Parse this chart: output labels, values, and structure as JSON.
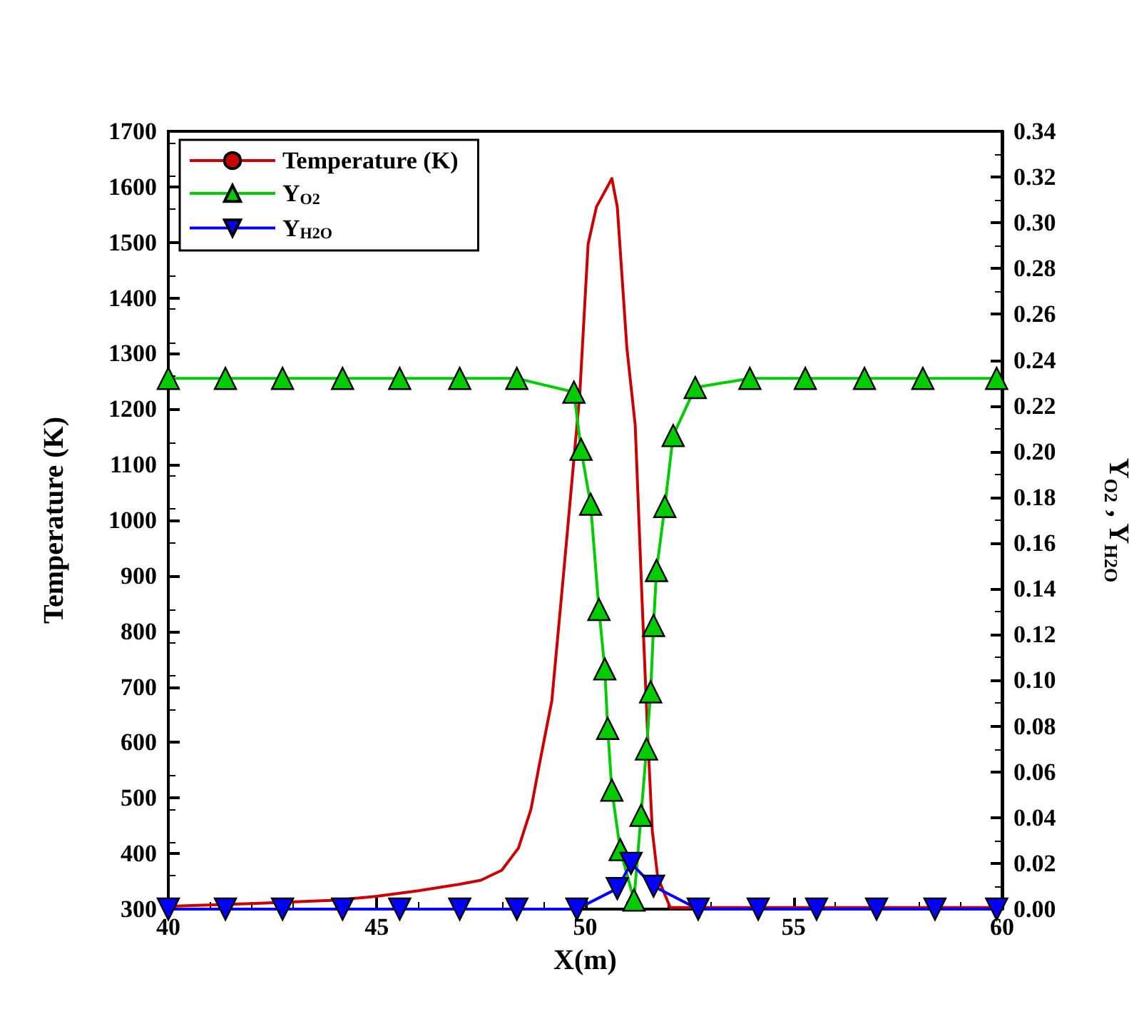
{
  "chart_data": {
    "type": "line",
    "xlabel": "X(m)",
    "ylabel": "Temperature (K)",
    "y2label": "Y$_{O2}$ , Y$_{H2O}$",
    "xlim": [
      40,
      60
    ],
    "xticks": [
      40,
      45,
      50,
      55,
      60
    ],
    "ylim": [
      300,
      1700
    ],
    "yticks": [
      300,
      400,
      500,
      600,
      700,
      800,
      900,
      1000,
      1100,
      1200,
      1300,
      1400,
      1500,
      1600,
      1700
    ],
    "y2lim": [
      0,
      0.34
    ],
    "y2ticks": [
      {
        "value": 0,
        "label": "0.00"
      },
      {
        "value": 0.02,
        "label": "0.02"
      },
      {
        "value": 0.04,
        "label": "0.04"
      },
      {
        "value": 0.06,
        "label": "0.06"
      },
      {
        "value": 0.08,
        "label": "0.08"
      },
      {
        "value": 0.1,
        "label": "0.10"
      },
      {
        "value": 0.12,
        "label": "0.12"
      },
      {
        "value": 0.14,
        "label": "0.14"
      },
      {
        "value": 0.16,
        "label": "0.16"
      },
      {
        "value": 0.18,
        "label": "0.18"
      },
      {
        "value": 0.2,
        "label": "0.20"
      },
      {
        "value": 0.22,
        "label": "0.22"
      },
      {
        "value": 0.24,
        "label": "0.24"
      },
      {
        "value": 0.26,
        "label": "0.26"
      },
      {
        "value": 0.28,
        "label": "0.28"
      },
      {
        "value": 0.3,
        "label": "0.30"
      },
      {
        "value": 0.32,
        "label": "0.32"
      },
      {
        "value": 0.34,
        "label": "0.34"
      }
    ],
    "legend": "top left",
    "grid": false,
    "series": [
      {
        "name": "Temperature (K)",
        "color": "#cc0000",
        "marker": "none",
        "x": [
          40,
          42,
          44,
          45,
          46,
          47,
          47.5,
          48,
          48.4,
          48.7,
          48.9,
          49.2,
          49.5,
          49.87,
          50.07,
          50.27,
          50.64,
          50.77,
          51.0,
          51.2,
          51.37,
          51.5,
          51.61,
          51.74,
          52.04,
          60
        ],
        "values": [
          305,
          310,
          316,
          323,
          333,
          345,
          352,
          370,
          410,
          480,
          560,
          675,
          919,
          1227,
          1497,
          1564,
          1615,
          1564,
          1310,
          1171,
          845,
          611,
          441,
          357,
          303,
          303
        ]
      },
      {
        "name": "Y$_{O2}$",
        "color": "#00cc00",
        "marker": "triangle",
        "axis": "y2",
        "x": [
          40,
          41.37,
          42.74,
          44.18,
          45.55,
          46.99,
          48.36,
          49.73,
          49.9,
          50.13,
          50.33,
          50.47,
          50.54,
          50.64,
          50.84,
          51.17,
          51.34,
          51.47,
          51.57,
          51.64,
          51.71,
          51.91,
          52.11,
          52.64,
          53.95,
          55.28,
          56.7,
          58.1,
          59.87
        ],
        "values": [
          0.232,
          0.232,
          0.232,
          0.232,
          0.232,
          0.232,
          0.232,
          0.226,
          0.201,
          0.177,
          0.131,
          0.105,
          0.079,
          0.052,
          0.026,
          0.004,
          0.041,
          0.07,
          0.095,
          0.124,
          0.148,
          0.176,
          0.207,
          0.228,
          0.232,
          0.232,
          0.232,
          0.232,
          0.232
        ]
      },
      {
        "name": "Y$_{H2O}$",
        "color": "#0000ff",
        "marker": "triangle_down",
        "axis": "y2",
        "x": [
          40,
          41.37,
          42.74,
          44.18,
          45.55,
          46.99,
          48.36,
          49.8,
          50.77,
          51.1,
          51.64,
          52.71,
          54.15,
          55.55,
          56.99,
          58.39,
          59.87
        ],
        "values": [
          0,
          0,
          0,
          0,
          0,
          0,
          0,
          0,
          0.009,
          0.02,
          0.01,
          0,
          0,
          0,
          0,
          0,
          0
        ]
      }
    ]
  }
}
